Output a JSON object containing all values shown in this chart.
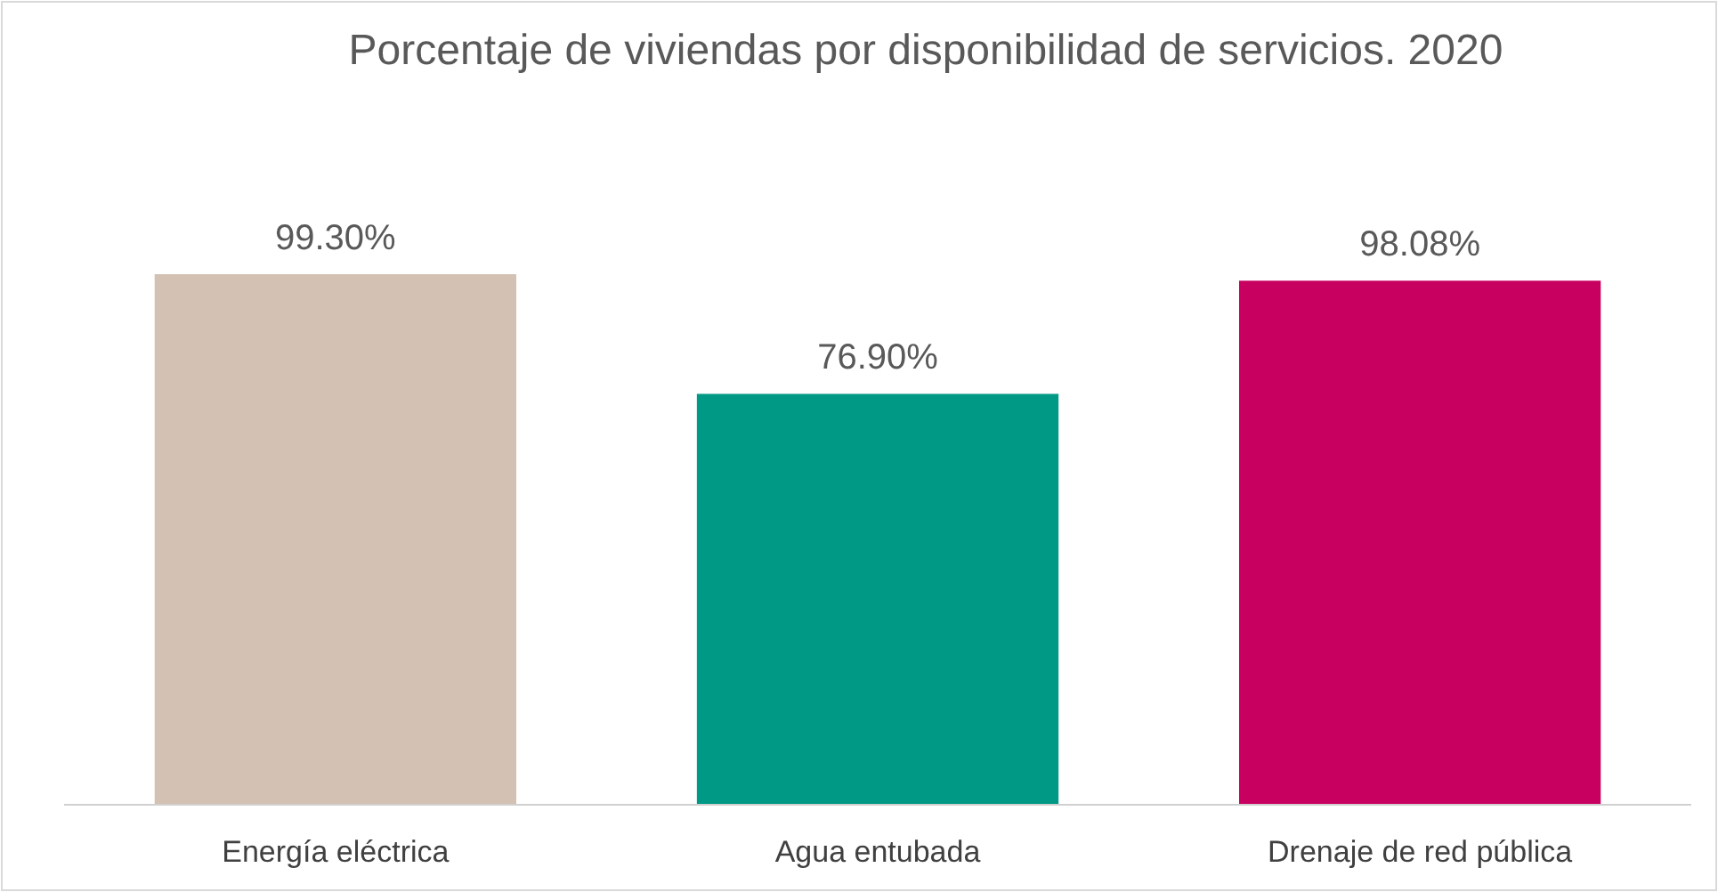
{
  "chart_data": {
    "type": "bar",
    "title": "Porcentaje de viviendas por disponibilidad de servicios. 2020",
    "categories": [
      "Energía eléctrica",
      "Agua entubada",
      "Drenaje de red pública"
    ],
    "values": [
      99.3,
      76.9,
      98.08
    ],
    "colors": [
      "#d3c1b3",
      "#009985",
      "#c8005f"
    ],
    "value_labels": [
      "99.30%",
      "76.90%",
      "98.08%"
    ]
  }
}
